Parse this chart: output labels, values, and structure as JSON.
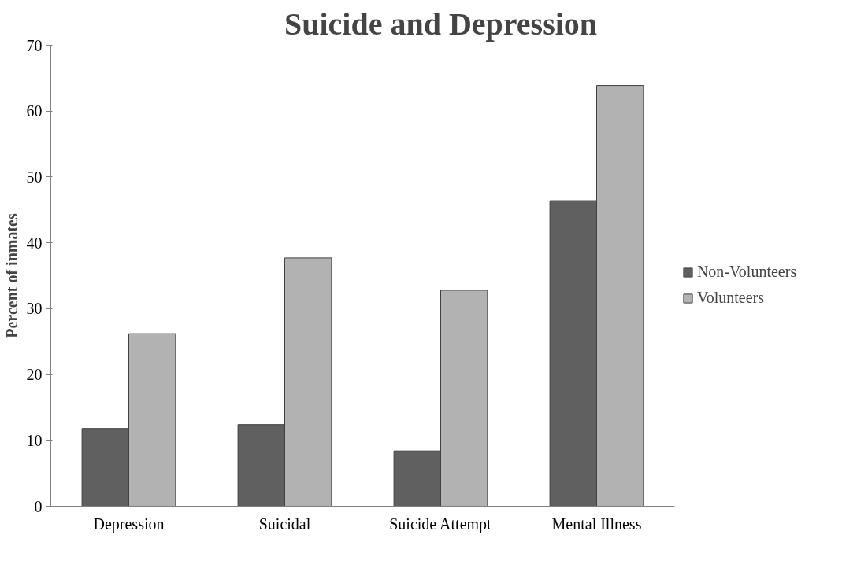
{
  "chart_data": {
    "type": "bar",
    "title": "Suicide and Depression",
    "ylabel": "Percent of inmates",
    "categories": [
      "Depression",
      "Suicidal",
      "Suicide Attempt",
      "Mental Illness"
    ],
    "series": [
      {
        "name": "Non-Volunteers",
        "color": "#606060",
        "values": [
          11.8,
          12.4,
          8.4,
          46.4
        ]
      },
      {
        "name": "Volunteers",
        "color": "#b2b2b2",
        "values": [
          26.2,
          37.7,
          32.8,
          63.9
        ]
      }
    ],
    "ylim": [
      0,
      70
    ],
    "yticks": [
      0,
      10,
      20,
      30,
      40,
      50,
      60,
      70
    ],
    "grid": false,
    "legend": "right"
  }
}
